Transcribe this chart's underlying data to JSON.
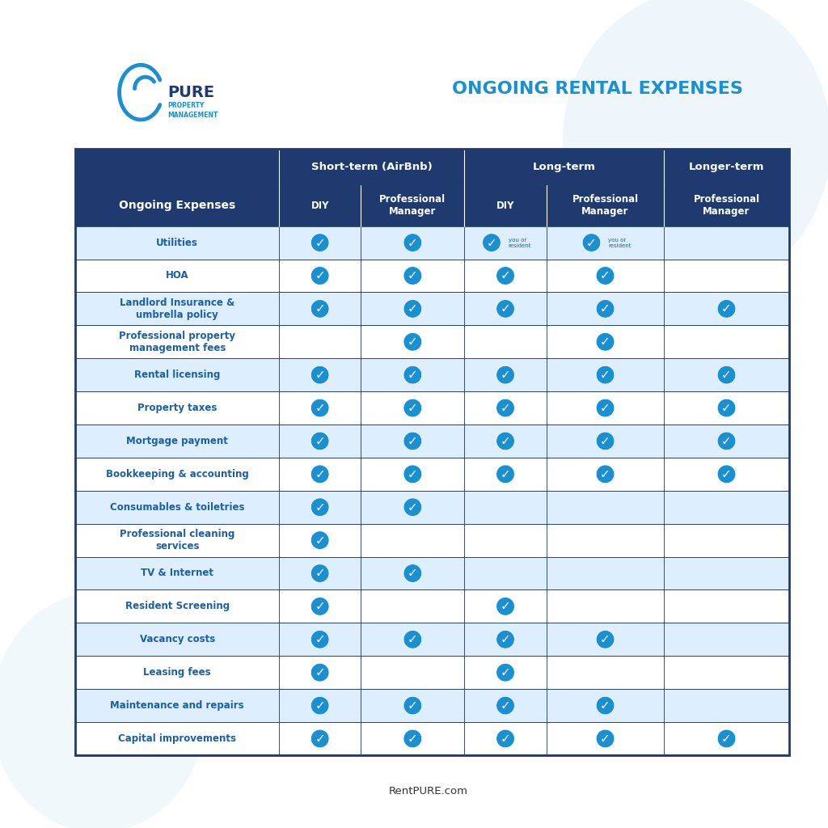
{
  "title": "ONGOING RENTAL EXPENSES",
  "subtitle": "RentPURE.com",
  "rows": [
    {
      "label": "Utilities",
      "checks": [
        true,
        true,
        "you or\nresident",
        "you or\nresident",
        false
      ]
    },
    {
      "label": "HOA",
      "checks": [
        true,
        true,
        true,
        true,
        false
      ]
    },
    {
      "label": "Landlord Insurance &\numbrella policy",
      "checks": [
        true,
        true,
        true,
        true,
        true
      ]
    },
    {
      "label": "Professional property\nmanagement fees",
      "checks": [
        false,
        true,
        false,
        true,
        false
      ]
    },
    {
      "label": "Rental licensing",
      "checks": [
        true,
        true,
        true,
        true,
        true
      ]
    },
    {
      "label": "Property taxes",
      "checks": [
        true,
        true,
        true,
        true,
        true
      ]
    },
    {
      "label": "Mortgage payment",
      "checks": [
        true,
        true,
        true,
        true,
        true
      ]
    },
    {
      "label": "Bookkeeping & accounting",
      "checks": [
        true,
        true,
        true,
        true,
        true
      ]
    },
    {
      "label": "Consumables & toiletries",
      "checks": [
        true,
        true,
        false,
        false,
        false
      ]
    },
    {
      "label": "Professional cleaning\nservices",
      "checks": [
        true,
        false,
        false,
        false,
        false
      ]
    },
    {
      "label": "TV & Internet",
      "checks": [
        true,
        true,
        false,
        false,
        false
      ]
    },
    {
      "label": "Resident Screening",
      "checks": [
        true,
        false,
        true,
        false,
        false
      ]
    },
    {
      "label": "Vacancy costs",
      "checks": [
        true,
        true,
        true,
        true,
        false
      ]
    },
    {
      "label": "Leasing fees",
      "checks": [
        true,
        false,
        true,
        false,
        false
      ]
    },
    {
      "label": "Maintenance and repairs",
      "checks": [
        true,
        true,
        true,
        true,
        false
      ]
    },
    {
      "label": "Capital improvements",
      "checks": [
        true,
        true,
        true,
        true,
        true
      ]
    }
  ],
  "header_bg": "#1e3a6e",
  "header_text": "#ffffff",
  "row_bg_even": "#ddeeff",
  "row_bg_odd": "#ffffff",
  "check_color": "#1a8fd1",
  "label_color": "#1a5fa8",
  "table_border": "#1e3a6e",
  "bg_color": "#ffffff",
  "title_color": "#1a8fd1",
  "logo_text_color": "#1e3a6e"
}
